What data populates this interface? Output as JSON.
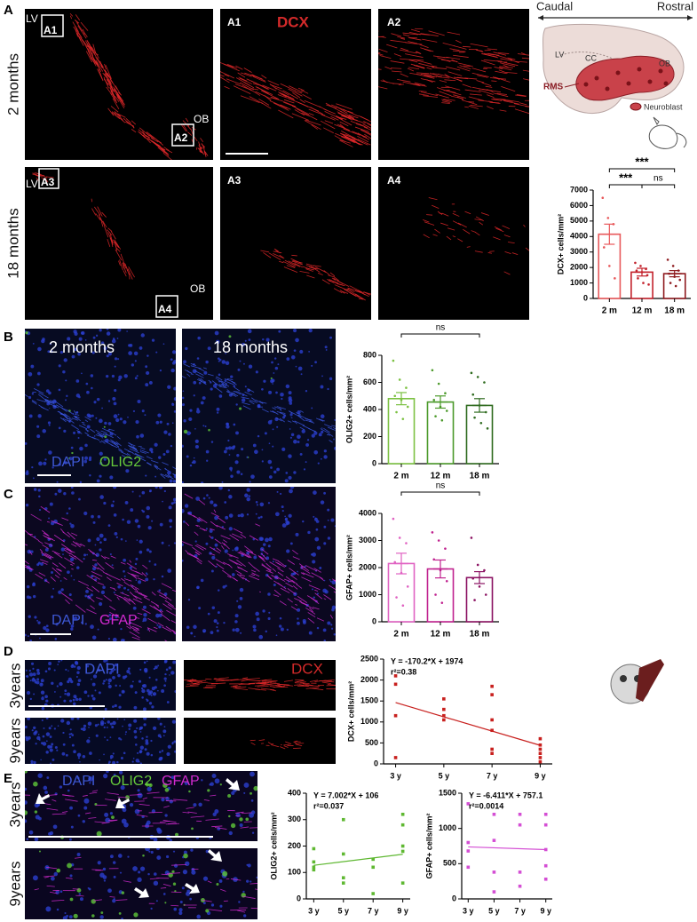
{
  "figure": {
    "A": {
      "label": "A",
      "rows": [
        "2 months",
        "18 months"
      ],
      "insets": [
        "A1",
        "A2",
        "A3",
        "A4"
      ],
      "markers": [
        "LV",
        "OB"
      ],
      "stain": "DCX",
      "schematic": {
        "caudal": "Caudal",
        "rostral": "Rostral",
        "regions": [
          "LV",
          "CC",
          "OB"
        ],
        "rms": "RMS",
        "legend": "Neuroblast"
      }
    },
    "B": {
      "label": "B",
      "columns": [
        "2 months",
        "18 months"
      ],
      "stains": [
        "DAPI",
        "OLIG2"
      ]
    },
    "C": {
      "label": "C",
      "stains": [
        "DAPI",
        "GFAP"
      ]
    },
    "D": {
      "label": "D",
      "rows": [
        "3years",
        "9years"
      ],
      "stains": [
        "DAPI",
        "DCX"
      ]
    },
    "E": {
      "label": "E",
      "rows": [
        "3years",
        "9years"
      ],
      "stains": [
        "DAPI",
        "OLIG2",
        "GFAP"
      ]
    }
  },
  "chart_data": [
    {
      "type": "bar",
      "y_label": "DCX+ cells/mm²",
      "categories": [
        "2 m",
        "12 m",
        "18 m"
      ],
      "values": [
        4150,
        1700,
        1600
      ],
      "errors": [
        650,
        250,
        200
      ],
      "colors": [
        "#e8585a",
        "#c3222c",
        "#8e1a1e"
      ],
      "points": [
        [
          6500,
          5200,
          4800,
          3300,
          2100,
          1300
        ],
        [
          2300,
          2100,
          1900,
          1800,
          1700,
          1500,
          1300,
          1000,
          900
        ],
        [
          2500,
          2100,
          1800,
          1600,
          1400,
          1200,
          1000,
          800
        ]
      ],
      "ylim": [
        0,
        7000
      ],
      "yticks": [
        0,
        1000,
        2000,
        3000,
        4000,
        5000,
        6000,
        7000
      ],
      "comparisons": [
        {
          "label": "***",
          "groups": [
            "2 m",
            "18 m"
          ]
        },
        {
          "label": "***",
          "groups": [
            "2 m",
            "12 m"
          ]
        },
        {
          "label": "ns",
          "groups": [
            "12 m",
            "18 m"
          ]
        }
      ]
    },
    {
      "type": "bar",
      "y_label": "OLIG2+ cells/mm²",
      "categories": [
        "2 m",
        "12 m",
        "18 m"
      ],
      "values": [
        480,
        455,
        430
      ],
      "errors": [
        45,
        45,
        50
      ],
      "colors": [
        "#7cc142",
        "#4c9a2b",
        "#2f6b1f"
      ],
      "points": [
        [
          760,
          620,
          560,
          500,
          470,
          420,
          380,
          330
        ],
        [
          690,
          590,
          520,
          470,
          420,
          390,
          350,
          320
        ],
        [
          670,
          640,
          600,
          510,
          430,
          380,
          340,
          300,
          260
        ]
      ],
      "ylim": [
        0,
        800
      ],
      "yticks": [
        0,
        200,
        400,
        600,
        800
      ],
      "comparisons": [
        {
          "label": "ns",
          "groups": [
            "2 m",
            "18 m"
          ]
        }
      ]
    },
    {
      "type": "bar",
      "y_label": "GFAP+ cells/mm²",
      "categories": [
        "2 m",
        "12 m",
        "18 m"
      ],
      "values": [
        2150,
        1950,
        1630
      ],
      "errors": [
        380,
        330,
        220
      ],
      "colors": [
        "#e062c2",
        "#c0228f",
        "#8b1262"
      ],
      "points": [
        [
          3800,
          3100,
          2900,
          2200,
          1800,
          1300,
          900,
          600
        ],
        [
          3300,
          3000,
          2700,
          2300,
          1900,
          1500,
          1000,
          700
        ],
        [
          3100,
          2100,
          1900,
          1600,
          1300,
          1000,
          800
        ]
      ],
      "ylim": [
        0,
        4000
      ],
      "yticks": [
        0,
        1000,
        2000,
        3000,
        4000
      ],
      "comparisons": [
        {
          "label": "ns",
          "groups": [
            "2 m",
            "18 m"
          ]
        }
      ]
    },
    {
      "type": "scatter",
      "y_label": "DCX+ cells/mm²",
      "color": "#c8201e",
      "x": [
        3,
        3,
        3,
        3,
        5,
        5,
        5,
        5,
        7,
        7,
        7,
        7,
        7,
        7,
        9,
        9,
        9,
        9,
        9,
        9
      ],
      "values": [
        2100,
        1900,
        1150,
        150,
        1550,
        1300,
        1150,
        1050,
        1850,
        1650,
        1050,
        800,
        350,
        250,
        600,
        450,
        350,
        250,
        150,
        50
      ],
      "xlim": [
        2.5,
        9.5
      ],
      "xticks": [
        {
          "value": 3,
          "label": "3 y"
        },
        {
          "value": 5,
          "label": "5 y"
        },
        {
          "value": 7,
          "label": "7 y"
        },
        {
          "value": 9,
          "label": "9 y"
        }
      ],
      "ylim": [
        0,
        2500
      ],
      "yticks": [
        0,
        500,
        1000,
        1500,
        2000,
        2500
      ],
      "fit": {
        "label": "Y = -170.2*X + 1974",
        "slope": -170.2,
        "intercept": 1974,
        "r2_label": "r²=0.38"
      }
    },
    {
      "type": "scatter",
      "y_label": "OLIG2+ cells/mm²",
      "color": "#5fb832",
      "x": [
        3,
        3,
        3,
        3,
        5,
        5,
        5,
        5,
        7,
        7,
        7,
        9,
        9,
        9,
        9,
        9
      ],
      "values": [
        190,
        140,
        120,
        110,
        300,
        170,
        80,
        60,
        150,
        120,
        20,
        320,
        280,
        200,
        180,
        60
      ],
      "xlim": [
        2.5,
        9.5
      ],
      "xticks": [
        {
          "value": 3,
          "label": "3 y"
        },
        {
          "value": 5,
          "label": "5 y"
        },
        {
          "value": 7,
          "label": "7 y"
        },
        {
          "value": 9,
          "label": "9 y"
        }
      ],
      "ylim": [
        0,
        400
      ],
      "yticks": [
        0,
        100,
        200,
        300,
        400
      ],
      "fit": {
        "label": "Y = 7.002*X + 106",
        "slope": 7.002,
        "intercept": 106,
        "r2_label": "r²=0.037"
      }
    },
    {
      "type": "scatter",
      "y_label": "GFAP+ cells/mm²",
      "color": "#d44fd4",
      "x": [
        3,
        3,
        3,
        3,
        5,
        5,
        5,
        5,
        7,
        7,
        7,
        7,
        9,
        9,
        9,
        9,
        9
      ],
      "values": [
        1350,
        800,
        680,
        450,
        1200,
        830,
        380,
        100,
        1200,
        1050,
        380,
        180,
        1200,
        1050,
        700,
        470,
        280
      ],
      "xlim": [
        2.5,
        9.5
      ],
      "xticks": [
        {
          "value": 3,
          "label": "3 y"
        },
        {
          "value": 5,
          "label": "5 y"
        },
        {
          "value": 7,
          "label": "7 y"
        },
        {
          "value": 9,
          "label": "9 y"
        }
      ],
      "ylim": [
        0,
        1500
      ],
      "yticks": [
        0,
        500,
        1000,
        1500
      ],
      "fit": {
        "label": "Y = -6.411*X + 757.1",
        "slope": -6.411,
        "intercept": 757.1,
        "r2_label": "r²=0.0014"
      }
    }
  ]
}
